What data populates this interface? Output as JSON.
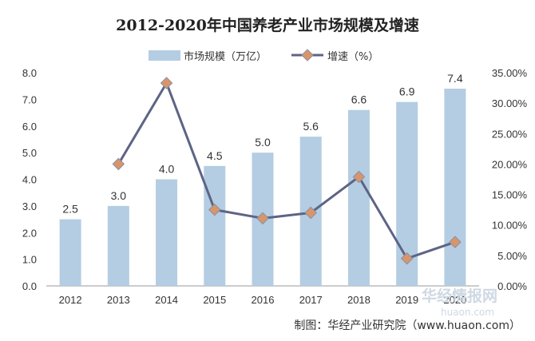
{
  "chart_data": {
    "type": "bar",
    "title": "2012-2020年中国养老产业市场规模及增速",
    "categories": [
      "2012",
      "2013",
      "2014",
      "2015",
      "2016",
      "2017",
      "2018",
      "2019",
      "2020"
    ],
    "series": [
      {
        "name": "市场规模（万亿）",
        "type": "bar",
        "axis": "left",
        "values": [
          2.5,
          3.0,
          4.0,
          4.5,
          5.0,
          5.6,
          6.6,
          6.9,
          7.4
        ],
        "labels": [
          "2.5",
          "3.0",
          "4.0",
          "4.5",
          "5.0",
          "5.6",
          "6.6",
          "6.9",
          "7.4"
        ],
        "color": "#b4cde3"
      },
      {
        "name": "增速（%）",
        "type": "line",
        "axis": "right",
        "values": [
          null,
          20.0,
          33.3,
          12.5,
          11.1,
          12.0,
          17.9,
          4.5,
          7.2
        ],
        "color": "#5d6485",
        "marker_color": "#d9956a"
      }
    ],
    "y_left": {
      "ylim": [
        0,
        8
      ],
      "ticks": [
        "0.0",
        "1.0",
        "2.0",
        "3.0",
        "4.0",
        "5.0",
        "6.0",
        "7.0",
        "8.0"
      ]
    },
    "y_right": {
      "ylim": [
        0,
        35
      ],
      "ticks": [
        "0.00%",
        "5.00%",
        "10.00%",
        "15.00%",
        "20.00%",
        "25.00%",
        "30.00%",
        "35.00%"
      ]
    },
    "grid": false,
    "legend_position": "top"
  },
  "source": "制图：华经产业研究院（www.huaon.com）",
  "watermark": {
    "text": "华经情报网",
    "url": "huaon.com"
  }
}
